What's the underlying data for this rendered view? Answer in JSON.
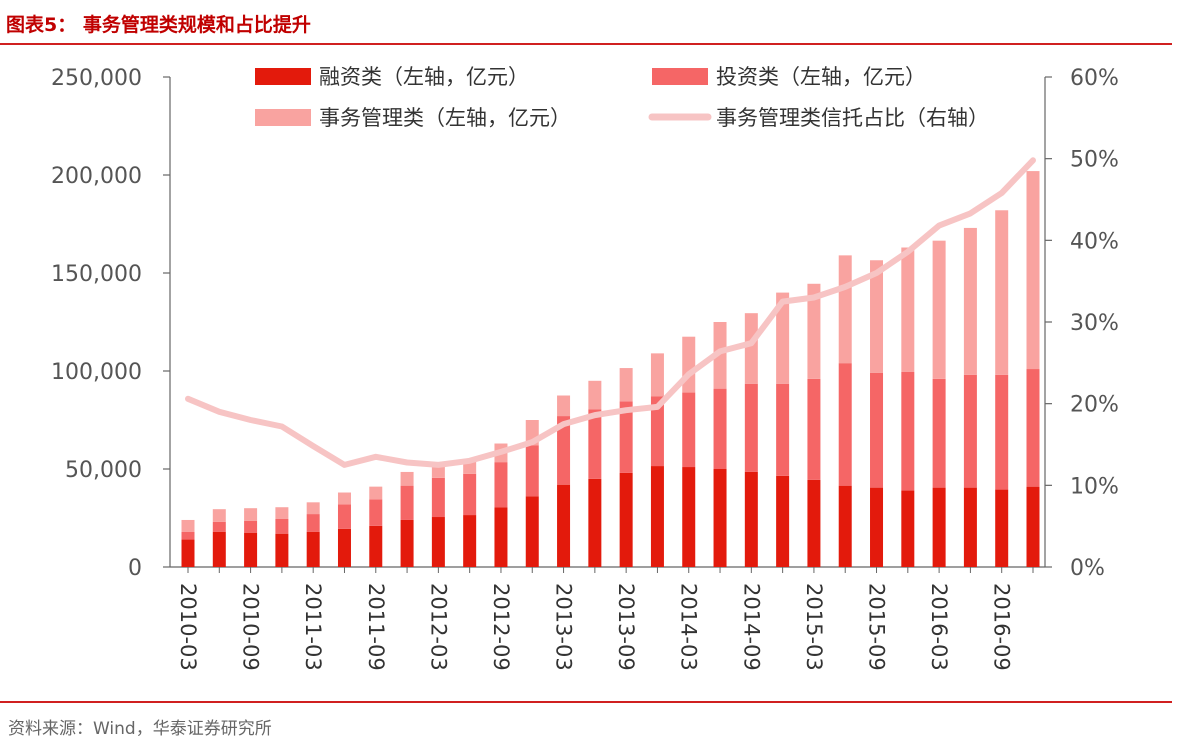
{
  "figure": {
    "title": "图表5：  事务管理类规模和占比提升",
    "source": "资料来源：Wind，华泰证券研究所"
  },
  "colors": {
    "financing": "#e31a0c",
    "investment": "#f56666",
    "management": "#f9a3a0",
    "ratio": "#f7c4c4",
    "rule": "#d02020",
    "title": "#c00000"
  },
  "chart_data": {
    "type": "bar",
    "stacked": true,
    "categories": [
      "2010-03",
      "2010-06",
      "2010-09",
      "2010-12",
      "2011-03",
      "2011-06",
      "2011-09",
      "2011-12",
      "2012-03",
      "2012-06",
      "2012-09",
      "2012-12",
      "2013-03",
      "2013-06",
      "2013-09",
      "2013-12",
      "2014-03",
      "2014-06",
      "2014-09",
      "2014-12",
      "2015-03",
      "2015-06",
      "2015-09",
      "2015-12",
      "2016-03",
      "2016-06",
      "2016-09",
      "2016-12"
    ],
    "x_tick_labels": [
      "2010-03",
      "2010-09",
      "2011-03",
      "2011-09",
      "2012-03",
      "2012-09",
      "2013-03",
      "2013-09",
      "2014-03",
      "2014-09",
      "2015-03",
      "2015-09",
      "2016-03",
      "2016-09"
    ],
    "series": [
      {
        "name": "融资类（左轴，亿元）",
        "axis": "left",
        "values": [
          14000,
          18000,
          17500,
          17000,
          18000,
          19500,
          21000,
          24000,
          25500,
          26500,
          30500,
          36000,
          42000,
          45000,
          48000,
          51500,
          51000,
          50000,
          48500,
          46500,
          44500,
          41500,
          40500,
          39000,
          40500,
          40500,
          39500,
          41000
        ]
      },
      {
        "name": "投资类（左轴，亿元）",
        "axis": "left",
        "values": [
          4000,
          5000,
          6000,
          7500,
          9000,
          12500,
          13500,
          17500,
          20000,
          21000,
          23000,
          26000,
          35000,
          35500,
          36500,
          35500,
          38000,
          41000,
          45000,
          47000,
          51500,
          62500,
          58500,
          60500,
          55500,
          57500,
          58500,
          60000
        ]
      },
      {
        "name": "事务管理类（左轴，亿元）",
        "axis": "left",
        "values": [
          6000,
          6500,
          6500,
          6000,
          6000,
          6000,
          6500,
          7000,
          6500,
          6500,
          9500,
          13000,
          10500,
          14500,
          17000,
          22000,
          28500,
          34000,
          36000,
          46500,
          48500,
          55000,
          57500,
          63500,
          70500,
          75000,
          84000,
          101000
        ]
      },
      {
        "name": "事务管理类信托占比（右轴）",
        "axis": "right",
        "type": "line",
        "values": [
          20.6,
          19.0,
          18.0,
          17.2,
          14.8,
          12.5,
          13.5,
          12.8,
          12.5,
          13.0,
          14.1,
          15.3,
          17.5,
          18.6,
          19.2,
          19.6,
          23.6,
          26.4,
          27.4,
          32.5,
          33.0,
          34.3,
          36.0,
          38.6,
          41.8,
          43.3,
          45.8,
          49.8
        ]
      }
    ],
    "y_left": {
      "min": 0,
      "max": 250000,
      "ticks": [
        0,
        50000,
        100000,
        150000,
        200000,
        250000
      ],
      "tick_labels": [
        "0",
        "50,000",
        "100,000",
        "150,000",
        "200,000",
        "250,000"
      ]
    },
    "y_right": {
      "min": 0,
      "max": 60,
      "ticks": [
        0,
        10,
        20,
        30,
        40,
        50,
        60
      ],
      "tick_labels": [
        "0%",
        "10%",
        "20%",
        "30%",
        "40%",
        "50%",
        "60%"
      ]
    },
    "grid": false,
    "legend": "top"
  }
}
